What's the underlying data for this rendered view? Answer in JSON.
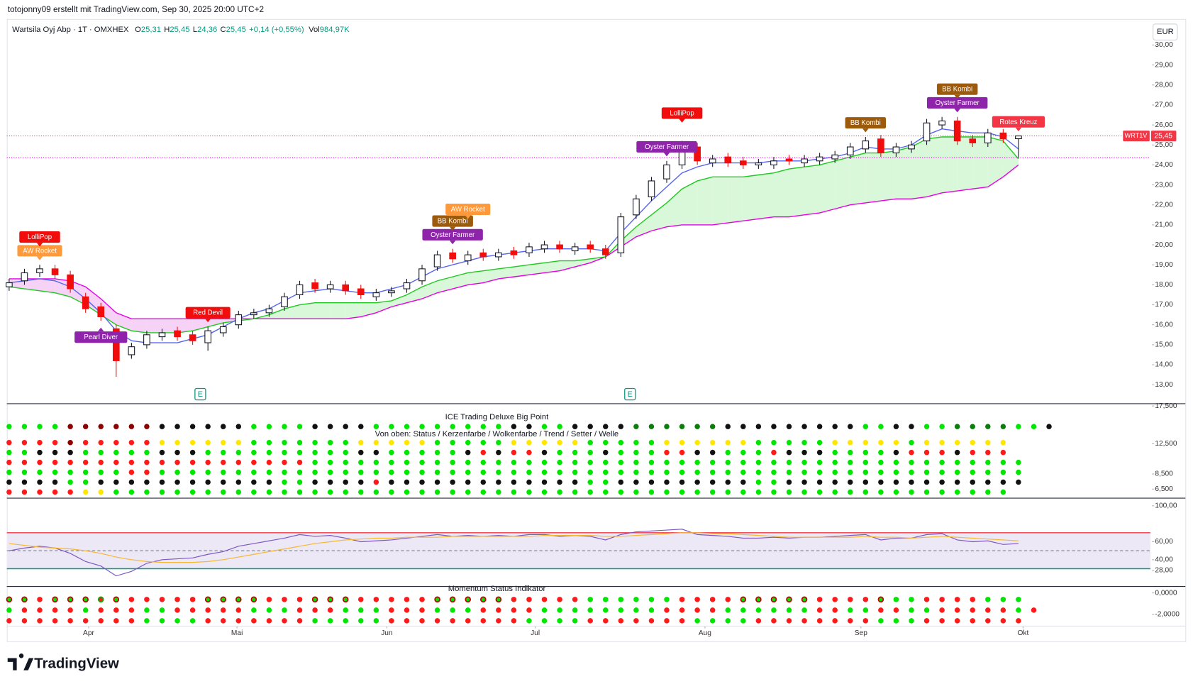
{
  "header": {
    "credit": "totojonny09 erstellt mit TradingView.com, Sep 30, 2025 20:00 UTC+2",
    "logo": "TradingView"
  },
  "chart_data": [
    {
      "type": "candlestick",
      "title": "Wartsila Oyj Abp · 1T · OMXHEX",
      "stats": [
        {
          "key": "O",
          "value": "25,31"
        },
        {
          "key": "H",
          "value": "25,45"
        },
        {
          "key": "L",
          "value": "24,36"
        },
        {
          "key": "C",
          "value": "25,45"
        }
      ],
      "change": "+0,14 (+0,55%)",
      "volume": {
        "key": "Vol",
        "value": "984,97K"
      },
      "currency": "EUR",
      "price_tag": {
        "symbol": "WRT1V",
        "label": "25,45"
      },
      "up_color": "#ffffff",
      "down_color": "#f20d0d",
      "open": [
        17.9,
        18.2,
        18.6,
        18.8,
        18.5,
        17.4,
        16.9,
        15.8,
        14.5,
        15.0,
        15.4,
        15.7,
        15.5,
        15.1,
        15.6,
        16.0,
        16.5,
        16.6,
        16.9,
        17.5,
        18.1,
        17.8,
        18.0,
        17.8,
        17.4,
        17.6,
        17.8,
        18.2,
        18.9,
        19.6,
        19.2,
        19.6,
        19.4,
        19.7,
        19.6,
        19.8,
        20.0,
        19.7,
        20.0,
        19.8,
        19.6,
        21.5,
        22.4,
        23.3,
        24.0,
        24.9,
        24.1,
        24.4,
        24.2,
        24.0,
        24.0,
        24.3,
        24.1,
        24.2,
        24.3,
        24.5,
        24.8,
        25.3,
        24.6,
        24.8,
        25.2,
        26.0,
        26.2,
        25.3,
        25.1,
        25.6,
        25.31
      ],
      "high": [
        18.3,
        18.8,
        19.0,
        19.0,
        18.7,
        17.6,
        17.1,
        16.0,
        15.1,
        15.7,
        15.8,
        15.9,
        15.7,
        15.9,
        16.1,
        16.7,
        16.8,
        17.0,
        17.6,
        18.2,
        18.3,
        18.2,
        18.2,
        18.0,
        17.8,
        17.9,
        18.3,
        19.0,
        19.7,
        19.8,
        19.7,
        19.8,
        19.8,
        19.9,
        20.1,
        20.2,
        20.2,
        20.1,
        20.2,
        20.0,
        21.6,
        22.5,
        23.4,
        24.2,
        25.2,
        25.1,
        24.5,
        24.6,
        24.4,
        24.3,
        24.4,
        24.5,
        24.5,
        24.6,
        24.7,
        25.1,
        25.4,
        25.5,
        25.1,
        25.2,
        26.3,
        26.4,
        26.4,
        25.5,
        25.8,
        25.8,
        25.45
      ],
      "low": [
        17.7,
        18.0,
        18.4,
        18.3,
        17.6,
        16.6,
        16.2,
        13.4,
        14.3,
        14.8,
        15.2,
        15.2,
        15.0,
        14.7,
        15.4,
        15.8,
        16.3,
        16.4,
        16.7,
        17.3,
        17.6,
        17.6,
        17.5,
        17.3,
        17.2,
        17.4,
        17.6,
        18.0,
        18.7,
        19.1,
        19.0,
        19.2,
        19.2,
        19.3,
        19.4,
        19.6,
        19.6,
        19.5,
        19.6,
        19.3,
        19.4,
        21.3,
        22.2,
        23.1,
        23.8,
        24.0,
        23.9,
        23.9,
        23.8,
        23.8,
        23.8,
        24.0,
        23.9,
        24.0,
        24.1,
        24.3,
        24.6,
        24.4,
        24.4,
        24.6,
        25.0,
        25.8,
        25.0,
        24.9,
        24.9,
        25.1,
        24.36
      ],
      "close": [
        18.1,
        18.6,
        18.8,
        18.5,
        17.8,
        16.8,
        16.4,
        14.2,
        14.9,
        15.5,
        15.6,
        15.4,
        15.2,
        15.7,
        15.9,
        16.5,
        16.6,
        16.8,
        17.4,
        18.0,
        17.8,
        18.0,
        17.7,
        17.5,
        17.6,
        17.7,
        18.1,
        18.8,
        19.5,
        19.3,
        19.5,
        19.4,
        19.6,
        19.5,
        19.9,
        20.0,
        19.8,
        19.9,
        19.8,
        19.5,
        21.4,
        22.3,
        23.2,
        24.0,
        25.0,
        24.2,
        24.3,
        24.1,
        24.0,
        24.1,
        24.2,
        24.2,
        24.3,
        24.4,
        24.5,
        24.9,
        25.2,
        24.6,
        24.9,
        25.0,
        26.1,
        26.2,
        25.2,
        25.1,
        25.6,
        25.3,
        25.45
      ],
      "lines": [
        {
          "color": "#e600e6",
          "values": [
            18.3,
            18.3,
            18.3,
            18.3,
            18.2,
            17.9,
            17.3,
            16.6,
            16.3,
            16.3,
            16.3,
            16.3,
            16.3,
            16.3,
            16.3,
            16.3,
            16.3,
            16.3,
            16.3,
            16.3,
            16.3,
            16.3,
            16.3,
            16.4,
            16.6,
            16.9,
            17.1,
            17.3,
            17.6,
            17.8,
            18.0,
            18.1,
            18.3,
            18.4,
            18.5,
            18.6,
            18.7,
            18.9,
            19.1,
            19.4,
            19.9,
            20.4,
            20.7,
            20.9,
            21.0,
            21.0,
            21.0,
            21.1,
            21.2,
            21.3,
            21.4,
            21.4,
            21.5,
            21.6,
            21.8,
            22.0,
            22.1,
            22.2,
            22.3,
            22.3,
            22.4,
            22.6,
            22.7,
            22.8,
            22.9,
            23.4,
            24.0
          ]
        },
        {
          "color": "#1fc91f",
          "values": [
            17.9,
            17.8,
            17.7,
            17.6,
            17.4,
            17.0,
            16.5,
            16.0,
            15.7,
            15.6,
            15.6,
            15.6,
            15.7,
            15.9,
            16.1,
            16.2,
            16.3,
            16.5,
            16.8,
            17.0,
            17.1,
            17.1,
            17.1,
            17.1,
            17.1,
            17.2,
            17.5,
            17.9,
            18.2,
            18.4,
            18.6,
            18.7,
            18.8,
            18.9,
            19.0,
            19.1,
            19.2,
            19.2,
            19.3,
            19.4,
            20.2,
            20.9,
            21.5,
            22.1,
            22.8,
            23.2,
            23.4,
            23.4,
            23.4,
            23.5,
            23.6,
            23.8,
            23.9,
            24.0,
            24.2,
            24.4,
            24.6,
            24.6,
            24.7,
            24.9,
            25.3,
            25.4,
            25.4,
            25.4,
            25.4,
            25.2,
            24.3
          ]
        },
        {
          "color": "#5464f0",
          "values": [
            18.1,
            18.2,
            18.3,
            18.2,
            17.9,
            17.3,
            16.6,
            15.7,
            15.2,
            15.1,
            15.1,
            15.1,
            15.3,
            15.5,
            15.9,
            16.3,
            16.6,
            16.8,
            17.2,
            17.6,
            17.7,
            17.8,
            17.7,
            17.6,
            17.6,
            17.8,
            18.0,
            18.4,
            18.8,
            19.0,
            19.2,
            19.4,
            19.5,
            19.6,
            19.7,
            19.8,
            19.8,
            19.8,
            19.8,
            19.7,
            20.6,
            21.4,
            22.2,
            22.9,
            23.6,
            23.9,
            24.1,
            24.1,
            24.1,
            24.1,
            24.2,
            24.2,
            24.2,
            24.3,
            24.4,
            24.6,
            24.9,
            24.8,
            24.8,
            25.0,
            25.5,
            25.8,
            25.7,
            25.6,
            25.6,
            25.4,
            24.8
          ]
        }
      ],
      "cloud_colors": [
        "#d9f7d9",
        "#f6d3f6"
      ],
      "annotations": [
        {
          "text": "AW Rocket",
          "at": 2,
          "color": "#ff9a3c",
          "side": "above"
        },
        {
          "text": "LolliPop",
          "at": 2,
          "color": "#f20d0d",
          "side": "above"
        },
        {
          "text": "Pearl Diver",
          "at": 6,
          "color": "#8e24aa",
          "side": "below"
        },
        {
          "text": "Red Devil",
          "at": 13,
          "color": "#f20d0d",
          "side": "above"
        },
        {
          "text": "Oyster Farmer",
          "at": 29,
          "color": "#8e24aa",
          "side": "above"
        },
        {
          "text": "BB Kombi",
          "at": 29,
          "color": "#9c5a0c",
          "side": "above"
        },
        {
          "text": "AW Rocket",
          "at": 30,
          "color": "#ff9a3c",
          "side": "above"
        },
        {
          "text": "Oyster Farmer",
          "at": 43,
          "color": "#8e24aa",
          "side": "above"
        },
        {
          "text": "LolliPop",
          "at": 44,
          "color": "#f20d0d",
          "side": "above"
        },
        {
          "text": "BB Kombi",
          "at": 56,
          "color": "#9c5a0c",
          "side": "above"
        },
        {
          "text": "Oyster Farmer",
          "at": 62,
          "color": "#8e24aa",
          "side": "above"
        },
        {
          "text": "BB Kombi",
          "at": 62,
          "color": "#9c5a0c",
          "side": "above"
        },
        {
          "text": "Rotes Kreuz",
          "at": 66,
          "color": "#f23645",
          "side": "above"
        }
      ],
      "events": [
        {
          "label": "E",
          "at": 12.5
        },
        {
          "label": "E",
          "at": 40.6
        }
      ],
      "xticks": [
        {
          "value": 5.2,
          "label": "Apr"
        },
        {
          "value": 14.9,
          "label": "Mai"
        },
        {
          "value": 24.7,
          "label": "Jun"
        },
        {
          "value": 34.4,
          "label": "Jul"
        },
        {
          "value": 45.5,
          "label": "Aug"
        },
        {
          "value": 55.7,
          "label": "Sep"
        },
        {
          "value": 66.3,
          "label": "Okt"
        }
      ],
      "ylim": [
        12.05,
        31.3
      ],
      "yticks": [
        {
          "value": 13,
          "label": "13,00"
        },
        {
          "value": 14,
          "label": "14,00"
        },
        {
          "value": 15,
          "label": "15,00"
        },
        {
          "value": 16,
          "label": "16,00"
        },
        {
          "value": 17,
          "label": "17,00"
        },
        {
          "value": 18,
          "label": "18,00"
        },
        {
          "value": 19,
          "label": "19,00"
        },
        {
          "value": 20,
          "label": "20,00"
        },
        {
          "value": 21,
          "label": "21,00"
        },
        {
          "value": 22,
          "label": "22,00"
        },
        {
          "value": 23,
          "label": "23,00"
        },
        {
          "value": 24,
          "label": "24,00"
        },
        {
          "value": 25,
          "label": "25,00"
        },
        {
          "value": 26,
          "label": "26,00"
        },
        {
          "value": 27,
          "label": "27,00"
        },
        {
          "value": 28,
          "label": "28,00"
        },
        {
          "value": 29,
          "label": "29,00"
        },
        {
          "value": 30,
          "label": "30,00"
        }
      ],
      "grid": false
    },
    {
      "type": "dots",
      "title": "ICE Trading Deluxe Big Point",
      "subtitle": "Von oben: Status / Kerzenfarbe / Wolkenfarbe / Trend / Setter / Welle",
      "rows": [
        "ggggRRRRRRkkkkkkggggkkkkgggggggggkkggkkkkGGGGGGkkkkkkkkkggkkggGGGGggk",
        "rrrrRrrrrryyyyyygggggggyyyyygggggyyyyygggggyyyyyygggggyyyyygyyyyyy",
        "ggkkkgggggkkkggggggggggkkgggggkrkrrkgggkgggrrkkgggrkkkggggkrrrkrrr",
        "rrrrrrrrrrrrrrrrrrrrggggggggggggggggggggggggggggggggggggggggggggggg",
        "ggggggggrrggggggggggggggggggggggggggggggggggggggggggggggggggggggggg",
        "kkkkggkkkkkkkkkkkkggkkkkrkkkkkkkkkkkkkggkkkkkkkkkggkkkkkkkkkkkkkkkk",
        "rrrrryyggggggggggggggggggggggggggggggggggggggggggggggggggggggggggg"
      ],
      "palette": {
        "g": "#00e600",
        "G": "#0b7d0b",
        "r": "#ff1a1a",
        "R": "#8b0000",
        "k": "#111111",
        "y": "#ffe600"
      },
      "ylim": [
        5.3,
        17.8
      ],
      "yticks": [
        {
          "value": 17.5,
          "label": "17,500"
        },
        {
          "value": 12.5,
          "label": "12,500"
        },
        {
          "value": 8.5,
          "label": "8,500"
        },
        {
          "value": 6.5,
          "label": "6,500"
        }
      ]
    },
    {
      "type": "line",
      "series": [
        {
          "color": "#7e57c2",
          "values": [
            50,
            53,
            55,
            53,
            47,
            38,
            33,
            22,
            27,
            36,
            40,
            41,
            42,
            46,
            49,
            55,
            58,
            61,
            64,
            68,
            66,
            67,
            64,
            60,
            61,
            62,
            64,
            66,
            68,
            66,
            67,
            66,
            67,
            66,
            68,
            68,
            66,
            67,
            66,
            62,
            68,
            71,
            72,
            73,
            74,
            68,
            67,
            66,
            64,
            64,
            65,
            64,
            65,
            65,
            66,
            67,
            68,
            62,
            64,
            64,
            68,
            69,
            62,
            60,
            61,
            57,
            58
          ]
        },
        {
          "color": "#f7b731",
          "values": [
            58,
            56,
            54,
            53,
            52,
            50,
            47,
            43,
            40,
            38,
            37,
            37,
            37,
            38,
            40,
            43,
            46,
            49,
            52,
            55,
            58,
            60,
            62,
            63,
            64,
            64,
            65,
            65,
            65,
            66,
            66,
            66,
            66,
            66,
            66,
            67,
            67,
            67,
            67,
            66,
            66,
            67,
            68,
            69,
            70,
            70,
            69,
            69,
            68,
            67,
            66,
            65,
            65,
            65,
            65,
            65,
            66,
            65,
            65,
            64,
            65,
            66,
            65,
            64,
            63,
            62,
            61
          ]
        }
      ],
      "levels": [
        {
          "value": 70,
          "color": "#f23645",
          "dashed": false
        },
        {
          "value": 50,
          "color": "#787b86",
          "dashed": true
        },
        {
          "value": 30,
          "color": "#089981",
          "dashed": false
        }
      ],
      "band_color": "#ece8f6",
      "ylim": [
        10.2,
        108.5
      ],
      "yticks": [
        {
          "value": 100,
          "label": "100,00"
        },
        {
          "value": 60,
          "label": "60,00"
        },
        {
          "value": 40,
          "label": "40,00"
        },
        {
          "value": 28,
          "label": "28,00"
        }
      ]
    },
    {
      "type": "dots",
      "title": "Momentum Status Indikator",
      "rows": [
        "pprpppoprrrrrpppprrrppprrrrrppppprrrrrggggggrrrrppppprrrrpggrrrrggg",
        "grrrrgrrrggrrrrrgggrrrgggrrrgggrrrrggggggggrrrrggggggrrggrrggrrrrrgr",
        "rrrrrrrrrggggrrrrrrrgggggrrrrrrrrrggggrrrrrrrggggrrrrrrrrgggrrrrrrr"
      ],
      "palette": {
        "g": "#00e600",
        "r": "#ff1a1a",
        "p": "#00e600",
        "o": "#ff1a1a"
      },
      "rings": {
        "p": "#c40000",
        "o": "#00b000"
      },
      "ylim": [
        -3.1,
        0.6
      ],
      "yticks": [
        {
          "value": 0,
          "label": "0,0000"
        },
        {
          "value": -2,
          "label": "-2,0000"
        }
      ]
    }
  ]
}
